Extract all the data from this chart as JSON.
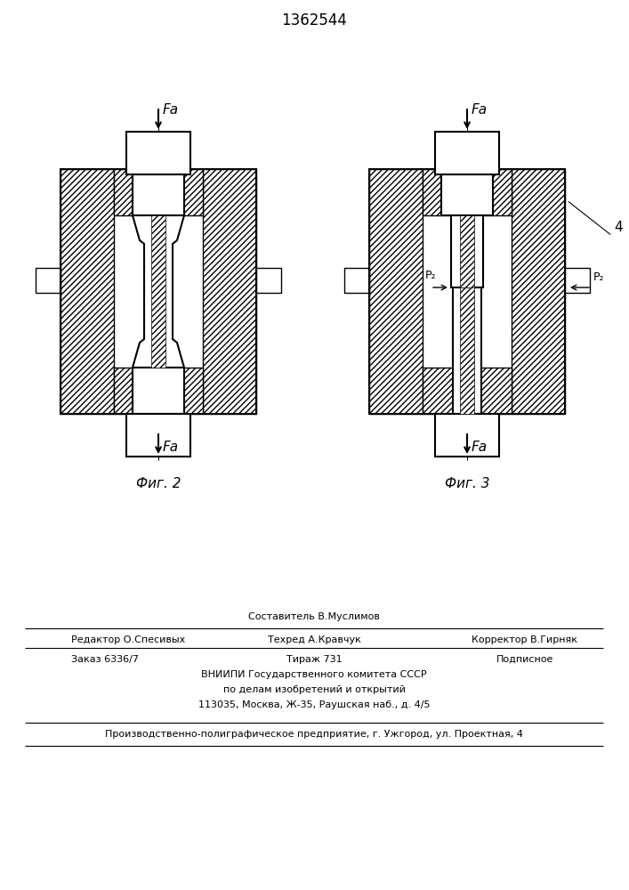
{
  "title": "1362544",
  "fig1_caption": "Фиг. 2",
  "fig2_caption": "Фиг. 3",
  "label_4": "4",
  "footer_line0": "Составитель В.Муслимов",
  "footer_line1_left": "Редактор О.Спесивых",
  "footer_line1_center": "Техред А.Кравчук",
  "footer_line1_right": "Корректор В.Гирняк",
  "footer_line2_col1": "Заказ 6336/7",
  "footer_line2_col2": "Тираж 731",
  "footer_line2_col3": "Подписное",
  "footer_line3": "ВНИИПИ Государственного комитета СССР",
  "footer_line4": "по делам изобретений и открытий",
  "footer_line5": "113035, Москва, Ж-35, Раушская наб., д. 4/5",
  "footer_last": "Производственно-полиграфическое предприятие, г. Ужгород, ул. Проектная, 4",
  "hatch_pattern": "/////",
  "bg_color": "#ffffff",
  "line_color": "#000000"
}
